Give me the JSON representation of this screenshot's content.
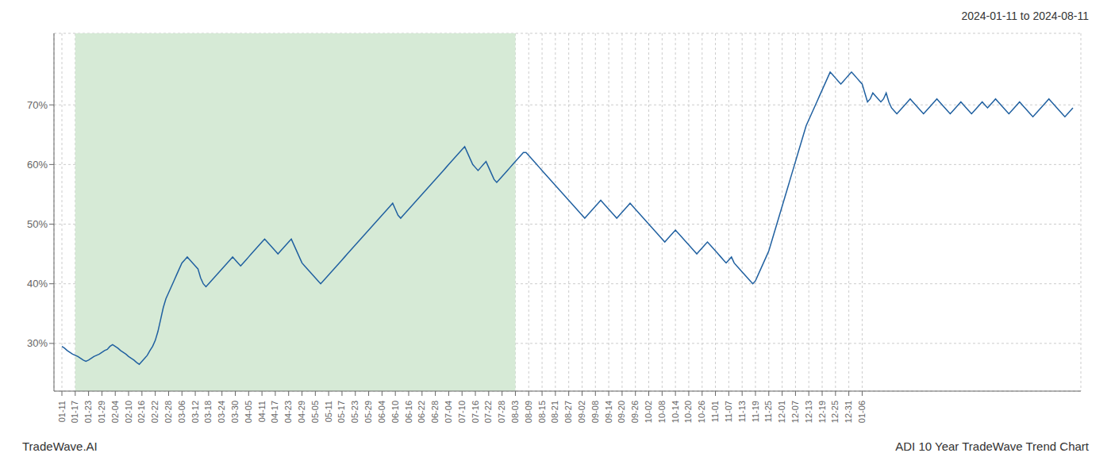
{
  "chart_data": {
    "type": "line",
    "title": "2024-01-11 to 2024-08-11",
    "annotations": [
      "TradeWave.AI",
      "ADI 10 Year TradeWave Trend Chart"
    ],
    "categories": [
      "01-11",
      null,
      null,
      null,
      null,
      "01-17",
      null,
      null,
      null,
      null,
      "01-23",
      null,
      null,
      null,
      null,
      "01-29",
      null,
      null,
      null,
      null,
      "02-04",
      null,
      null,
      null,
      null,
      "02-10",
      null,
      null,
      null,
      null,
      "02-16",
      null,
      null,
      null,
      null,
      "02-22",
      null,
      null,
      null,
      null,
      "02-28",
      null,
      null,
      null,
      null,
      "03-06",
      null,
      null,
      null,
      null,
      "03-12",
      null,
      null,
      null,
      null,
      "03-18",
      null,
      null,
      null,
      null,
      "03-24",
      null,
      null,
      null,
      null,
      "03-30",
      null,
      null,
      null,
      null,
      "04-05",
      null,
      null,
      null,
      null,
      "04-11",
      null,
      null,
      null,
      null,
      "04-17",
      null,
      null,
      null,
      null,
      "04-23",
      null,
      null,
      null,
      null,
      "04-29",
      null,
      null,
      null,
      null,
      "05-05",
      null,
      null,
      null,
      null,
      "05-11",
      null,
      null,
      null,
      null,
      "05-17",
      null,
      null,
      null,
      null,
      "05-23",
      null,
      null,
      null,
      null,
      "05-29",
      null,
      null,
      null,
      null,
      "06-04",
      null,
      null,
      null,
      null,
      "06-10",
      null,
      null,
      null,
      null,
      "06-16",
      null,
      null,
      null,
      null,
      "06-22",
      null,
      null,
      null,
      null,
      "06-28",
      null,
      null,
      null,
      null,
      "07-04",
      null,
      null,
      null,
      null,
      "07-10",
      null,
      null,
      null,
      null,
      "07-16",
      null,
      null,
      null,
      null,
      "07-22",
      null,
      null,
      null,
      null,
      "07-28",
      null,
      null,
      null,
      null,
      "08-03",
      null,
      null,
      null,
      null,
      "08-09",
      null,
      null,
      null,
      null,
      "08-15",
      null,
      null,
      null,
      null,
      "08-21",
      null,
      null,
      null,
      null,
      "08-27",
      null,
      null,
      null,
      null,
      "09-02",
      null,
      null,
      null,
      null,
      "09-08",
      null,
      null,
      null,
      null,
      "09-14",
      null,
      null,
      null,
      null,
      "09-20",
      null,
      null,
      null,
      null,
      "09-26",
      null,
      null,
      null,
      null,
      "10-02",
      null,
      null,
      null,
      null,
      "10-08",
      null,
      null,
      null,
      null,
      "10-14",
      null,
      null,
      null,
      null,
      "10-20",
      null,
      null,
      null,
      null,
      "10-26",
      null,
      null,
      null,
      null,
      "11-01",
      null,
      null,
      null,
      null,
      "11-07",
      null,
      null,
      null,
      null,
      "11-13",
      null,
      null,
      null,
      null,
      "11-19",
      null,
      null,
      null,
      null,
      "11-25",
      null,
      null,
      null,
      null,
      "12-01",
      null,
      null,
      null,
      null,
      "12-07",
      null,
      null,
      null,
      null,
      "12-13",
      null,
      null,
      null,
      null,
      "12-19",
      null,
      null,
      null,
      null,
      "12-25",
      null,
      null,
      null,
      null,
      "12-31",
      null,
      null,
      null,
      null,
      "01-06",
      null,
      null,
      null,
      null,
      null,
      null,
      null,
      null,
      null,
      null,
      null,
      null,
      null,
      null,
      null,
      null,
      null,
      null,
      null,
      null,
      null,
      null,
      null,
      null,
      null,
      null,
      null,
      null,
      null,
      null,
      null,
      null,
      null,
      null,
      null,
      null,
      null,
      null,
      null,
      null,
      null,
      null,
      null,
      null,
      null,
      null,
      null,
      null,
      null,
      null,
      null,
      null,
      null,
      null,
      null,
      null,
      null,
      null,
      null,
      null,
      null,
      null,
      null,
      null,
      null,
      null,
      null,
      null,
      null,
      null,
      null,
      null,
      null,
      null,
      null,
      null,
      null,
      null,
      null
    ],
    "values": [
      29.5,
      29.2,
      28.8,
      28.5,
      28.2,
      28.0,
      27.8,
      27.5,
      27.2,
      27.0,
      27.2,
      27.5,
      27.8,
      28.0,
      28.2,
      28.5,
      28.8,
      29.0,
      29.5,
      29.8,
      29.5,
      29.2,
      28.8,
      28.5,
      28.2,
      27.8,
      27.5,
      27.2,
      26.8,
      26.5,
      27.0,
      27.5,
      28.0,
      28.8,
      29.5,
      30.5,
      32.0,
      34.0,
      36.0,
      37.5,
      38.5,
      39.5,
      40.5,
      41.5,
      42.5,
      43.5,
      44.0,
      44.5,
      44.0,
      43.5,
      43.0,
      42.5,
      41.0,
      40.0,
      39.5,
      40.0,
      40.5,
      41.0,
      41.5,
      42.0,
      42.5,
      43.0,
      43.5,
      44.0,
      44.5,
      44.0,
      43.5,
      43.0,
      43.5,
      44.0,
      44.5,
      45.0,
      45.5,
      46.0,
      46.5,
      47.0,
      47.5,
      47.0,
      46.5,
      46.0,
      45.5,
      45.0,
      45.5,
      46.0,
      46.5,
      47.0,
      47.5,
      46.5,
      45.5,
      44.5,
      43.5,
      43.0,
      42.5,
      42.0,
      41.5,
      41.0,
      40.5,
      40.0,
      40.5,
      41.0,
      41.5,
      42.0,
      42.5,
      43.0,
      43.5,
      44.0,
      44.5,
      45.0,
      45.5,
      46.0,
      46.5,
      47.0,
      47.5,
      48.0,
      48.5,
      49.0,
      49.5,
      50.0,
      50.5,
      51.0,
      51.5,
      52.0,
      52.5,
      53.0,
      53.5,
      52.5,
      51.5,
      51.0,
      51.5,
      52.0,
      52.5,
      53.0,
      53.5,
      54.0,
      54.5,
      55.0,
      55.5,
      56.0,
      56.5,
      57.0,
      57.5,
      58.0,
      58.5,
      59.0,
      59.5,
      60.0,
      60.5,
      61.0,
      61.5,
      62.0,
      62.5,
      63.0,
      62.0,
      61.0,
      60.0,
      59.5,
      59.0,
      59.5,
      60.0,
      60.5,
      59.5,
      58.5,
      57.5,
      57.0,
      57.5,
      58.0,
      58.5,
      59.0,
      59.5,
      60.0,
      60.5,
      61.0,
      61.5,
      62.0,
      62.0,
      61.5,
      61.0,
      60.5,
      60.0,
      59.5,
      59.0,
      58.5,
      58.0,
      57.5,
      57.0,
      56.5,
      56.0,
      55.5,
      55.0,
      54.5,
      54.0,
      53.5,
      53.0,
      52.5,
      52.0,
      51.5,
      51.0,
      51.5,
      52.0,
      52.5,
      53.0,
      53.5,
      54.0,
      53.5,
      53.0,
      52.5,
      52.0,
      51.5,
      51.0,
      51.5,
      52.0,
      52.5,
      53.0,
      53.5,
      53.0,
      52.5,
      52.0,
      51.5,
      51.0,
      50.5,
      50.0,
      49.5,
      49.0,
      48.5,
      48.0,
      47.5,
      47.0,
      47.5,
      48.0,
      48.5,
      49.0,
      48.5,
      48.0,
      47.5,
      47.0,
      46.5,
      46.0,
      45.5,
      45.0,
      45.5,
      46.0,
      46.5,
      47.0,
      46.5,
      46.0,
      45.5,
      45.0,
      44.5,
      44.0,
      43.5,
      44.0,
      44.5,
      43.5,
      43.0,
      42.5,
      42.0,
      41.5,
      41.0,
      40.5,
      40.0,
      40.5,
      41.5,
      42.5,
      43.5,
      44.5,
      45.5,
      47.0,
      48.5,
      50.0,
      51.5,
      53.0,
      54.5,
      56.0,
      57.5,
      59.0,
      60.5,
      62.0,
      63.5,
      65.0,
      66.5,
      67.5,
      68.5,
      69.5,
      70.5,
      71.5,
      72.5,
      73.5,
      74.5,
      75.5,
      75.0,
      74.5,
      74.0,
      73.5,
      74.0,
      74.5,
      75.0,
      75.5,
      75.0,
      74.5,
      74.0,
      73.5,
      72.0,
      70.5,
      71.0,
      72.0,
      71.5,
      71.0,
      70.5,
      71.0,
      72.0,
      70.5,
      69.5,
      69.0,
      68.5,
      69.0,
      69.5,
      70.0,
      70.5,
      71.0,
      70.5,
      70.0,
      69.5,
      69.0,
      68.5,
      69.0,
      69.5,
      70.0,
      70.5,
      71.0,
      70.5,
      70.0,
      69.5,
      69.0,
      68.5,
      69.0,
      69.5,
      70.0,
      70.5,
      70.0,
      69.5,
      69.0,
      68.5,
      69.0,
      69.5,
      70.0,
      70.5,
      70.0,
      69.5,
      70.0,
      70.5,
      71.0,
      70.5,
      70.0,
      69.5,
      69.0,
      68.5,
      69.0,
      69.5,
      70.0,
      70.5,
      70.0,
      69.5,
      69.0,
      68.5,
      68.0,
      68.5,
      69.0,
      69.5,
      70.0,
      70.5,
      71.0,
      70.5,
      70.0,
      69.5,
      69.0,
      68.5,
      68.0,
      68.5,
      69.0,
      69.5
    ],
    "color": "#2060a0",
    "ylim": [
      22,
      82
    ],
    "yticks": [
      {
        "value": 30,
        "label": "30%"
      },
      {
        "value": 40,
        "label": "40%"
      },
      {
        "value": 50,
        "label": "50%"
      },
      {
        "value": 60,
        "label": "60%"
      },
      {
        "value": 70,
        "label": "70%"
      }
    ],
    "highlight": {
      "start": "01-17",
      "end": "08-03",
      "color": "#d6ead6"
    },
    "grid": true
  }
}
